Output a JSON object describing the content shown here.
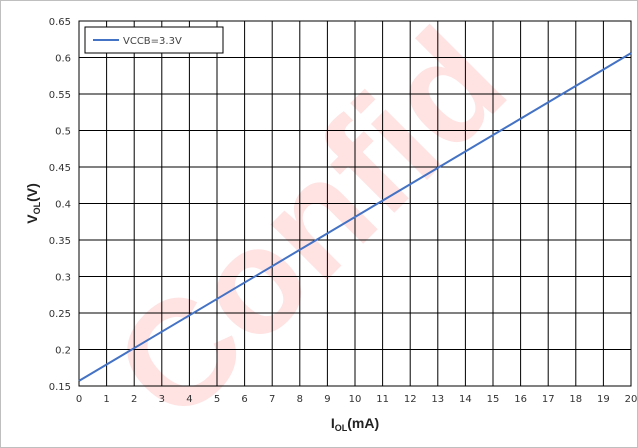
{
  "chart_data": {
    "type": "line",
    "title": "",
    "xlabel": {
      "main": "I",
      "sub": "OL",
      "unit": "(mA)"
    },
    "ylabel": {
      "main": "V",
      "sub": "OL",
      "unit": "(V)"
    },
    "xlim": [
      0,
      20
    ],
    "ylim": [
      0.15,
      0.65
    ],
    "xticks": [
      "0",
      "1",
      "2",
      "3",
      "4",
      "5",
      "6",
      "7",
      "8",
      "9",
      "10",
      "11",
      "12",
      "13",
      "14",
      "15",
      "16",
      "17",
      "18",
      "19",
      "20"
    ],
    "yticks": [
      "0.15",
      "0.2",
      "0.25",
      "0.3",
      "0.35",
      "0.4",
      "0.45",
      "0.5",
      "0.55",
      "0.6",
      "0.65"
    ],
    "grid": true,
    "legend_position": "top-left",
    "series": [
      {
        "name": "VCCB=3.3V",
        "color": "#4472c4",
        "x": [
          0,
          20
        ],
        "y": [
          0.157,
          0.606
        ]
      }
    ],
    "watermark": "Confid",
    "watermark_color": "#ff2a2a"
  }
}
